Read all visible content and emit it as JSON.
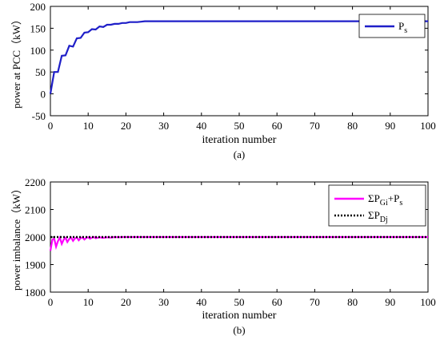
{
  "chart_data": [
    {
      "type": "line",
      "panel_label": "(a)",
      "xlabel": "iteration number",
      "ylabel": "power at PCC（kW）",
      "xlim": [
        0,
        100
      ],
      "ylim": [
        -50,
        200
      ],
      "xticks": [
        "0",
        "10",
        "20",
        "30",
        "40",
        "50",
        "60",
        "70",
        "80",
        "90",
        "100"
      ],
      "yticks": [
        "-50",
        "0",
        "50",
        "100",
        "150",
        "200"
      ],
      "legend_position": "top-right",
      "series": [
        {
          "name": "Ps",
          "legend_main": "P",
          "legend_sub": "s",
          "color": "#1f1fc8",
          "style": "solid",
          "x": [
            0,
            1,
            2,
            3,
            4,
            5,
            6,
            7,
            8,
            9,
            10,
            11,
            12,
            13,
            14,
            15,
            16,
            17,
            18,
            19,
            20,
            21,
            22,
            23,
            24,
            25,
            26,
            30,
            40,
            50,
            60,
            70,
            80,
            90,
            100
          ],
          "y": [
            0,
            50,
            50,
            87,
            88,
            110,
            108,
            127,
            128,
            140,
            141,
            148,
            147,
            154,
            153,
            158,
            158,
            160,
            160,
            162,
            162,
            164,
            164,
            164,
            165,
            166,
            166,
            166,
            166,
            166,
            166,
            166,
            166,
            166,
            166
          ]
        }
      ]
    },
    {
      "type": "line",
      "panel_label": "(b)",
      "xlabel": "iteration number",
      "ylabel": "power imbalance（kW）",
      "xlim": [
        0,
        100
      ],
      "ylim": [
        1800,
        2200
      ],
      "xticks": [
        "0",
        "10",
        "20",
        "30",
        "40",
        "50",
        "60",
        "70",
        "80",
        "90",
        "100"
      ],
      "yticks": [
        "1800",
        "1900",
        "2000",
        "2100",
        "2200"
      ],
      "legend_position": "top-right",
      "series": [
        {
          "name": "ΣPGi+Ps",
          "legend_main": "ΣP",
          "legend_sub": "Gi",
          "legend_tail": "+P",
          "legend_tail_sub": "s",
          "color": "#ff00ff",
          "style": "solid",
          "x": [
            0,
            0.5,
            1,
            1.5,
            2,
            2.5,
            3,
            3.5,
            4,
            4.5,
            5,
            5.5,
            6,
            6.5,
            7,
            7.5,
            8,
            8.5,
            9,
            9.5,
            10,
            10.5,
            11,
            11.5,
            12,
            13,
            14,
            15,
            16,
            17,
            18,
            19,
            20,
            25,
            30,
            50,
            100
          ],
          "y": [
            1950,
            1990,
            1995,
            1965,
            1985,
            1998,
            1975,
            1990,
            1997,
            1982,
            1993,
            1998,
            1986,
            1995,
            1999,
            1988,
            1996,
            1999,
            1991,
            1997,
            1999,
            1994,
            1998,
            2000,
            1996,
            1999,
            1997,
            1999,
            1998,
            2000,
            1999,
            2000,
            2000,
            2000,
            2000,
            2000,
            2000
          ]
        },
        {
          "name": "ΣPDj",
          "legend_main": "ΣP",
          "legend_sub": "Dj",
          "color": "#000000",
          "style": "dotted",
          "x": [
            0,
            100
          ],
          "y": [
            2000,
            2000
          ]
        }
      ]
    }
  ]
}
